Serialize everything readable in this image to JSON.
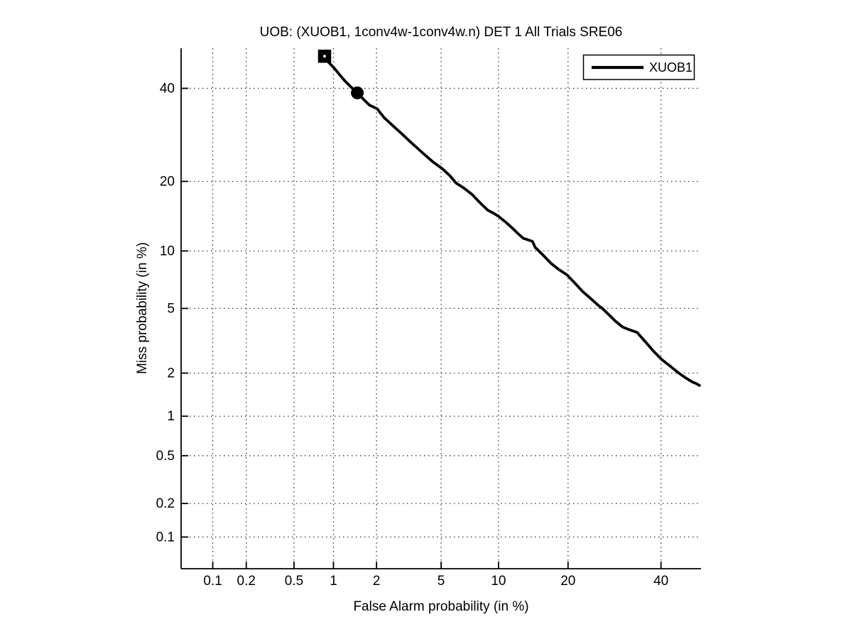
{
  "title": "UOB: (XUOB1, 1conv4w-1conv4w.n) DET 1 All Trials SRE06",
  "legend": {
    "position": "top-right",
    "entries": [
      {
        "label": "XUOB1",
        "color": "#000000"
      }
    ]
  },
  "chart_data": {
    "type": "line",
    "subtype": "DET-curve",
    "title": "UOB: (XUOB1, 1conv4w-1conv4w.n) DET 1 All Trials SRE06",
    "xlabel": "False Alarm probability (in %)",
    "ylabel": "Miss probability (in %)",
    "x_scale": "probit",
    "y_scale": "probit",
    "xlim": [
      0.05,
      50
    ],
    "ylim": [
      0.05,
      50
    ],
    "x_ticks": [
      0.1,
      0.2,
      0.5,
      1,
      2,
      5,
      10,
      20,
      40
    ],
    "x_tick_labels": [
      "0.1",
      "0.2",
      "0.5",
      "1",
      "2",
      "5",
      "10",
      "20",
      "40"
    ],
    "y_ticks": [
      0.1,
      0.2,
      0.5,
      1,
      2,
      5,
      10,
      20,
      40
    ],
    "y_tick_labels": [
      "0.1",
      "0.2",
      "0.5",
      "1",
      "2",
      "5",
      "10",
      "20",
      "40"
    ],
    "grid": "dotted",
    "grid_color": "#333333",
    "line_color": "#000000",
    "line_width": 3.8,
    "legend_position": "top-right",
    "series": [
      {
        "name": "XUOB1",
        "color": "#000000",
        "points": [
          [
            0.86,
            48.0
          ],
          [
            0.92,
            46.5
          ],
          [
            1.02,
            44.9
          ],
          [
            1.12,
            43.2
          ],
          [
            1.22,
            41.7
          ],
          [
            1.35,
            40.2
          ],
          [
            1.48,
            38.9
          ],
          [
            1.63,
            37.4
          ],
          [
            1.79,
            36.0
          ],
          [
            2.02,
            35.1
          ],
          [
            2.25,
            33.0
          ],
          [
            2.56,
            31.2
          ],
          [
            2.9,
            29.5
          ],
          [
            3.22,
            28.0
          ],
          [
            3.6,
            26.5
          ],
          [
            4.0,
            25.1
          ],
          [
            4.5,
            23.6
          ],
          [
            5.09,
            22.3
          ],
          [
            5.6,
            21.0
          ],
          [
            6.06,
            19.7
          ],
          [
            6.7,
            18.8
          ],
          [
            7.35,
            17.8
          ],
          [
            8.0,
            16.6
          ],
          [
            8.85,
            15.3
          ],
          [
            9.4,
            14.9
          ],
          [
            10.0,
            14.4
          ],
          [
            10.8,
            13.6
          ],
          [
            11.6,
            12.8
          ],
          [
            12.3,
            12.1
          ],
          [
            13.0,
            11.5
          ],
          [
            14.3,
            11.1
          ],
          [
            14.7,
            10.4
          ],
          [
            15.8,
            9.6
          ],
          [
            17.1,
            8.7
          ],
          [
            18.4,
            8.1
          ],
          [
            19.8,
            7.6
          ],
          [
            21.2,
            6.9
          ],
          [
            22.7,
            6.2
          ],
          [
            24.2,
            5.7
          ],
          [
            25.8,
            5.2
          ],
          [
            26.6,
            5.0
          ],
          [
            28.0,
            4.6
          ],
          [
            29.5,
            4.2
          ],
          [
            31.0,
            3.9
          ],
          [
            32.6,
            3.75
          ],
          [
            34.3,
            3.62
          ],
          [
            36.5,
            3.12
          ],
          [
            38.2,
            2.77
          ],
          [
            40.2,
            2.45
          ],
          [
            42.3,
            2.22
          ],
          [
            44.3,
            2.01
          ],
          [
            46.1,
            1.86
          ],
          [
            47.9,
            1.74
          ],
          [
            48.8,
            1.7
          ],
          [
            49.6,
            1.65
          ]
        ]
      }
    ],
    "markers": [
      {
        "shape": "square",
        "fa": 0.86,
        "miss": 48.0
      },
      {
        "shape": "circle",
        "fa": 1.48,
        "miss": 38.9
      }
    ]
  }
}
